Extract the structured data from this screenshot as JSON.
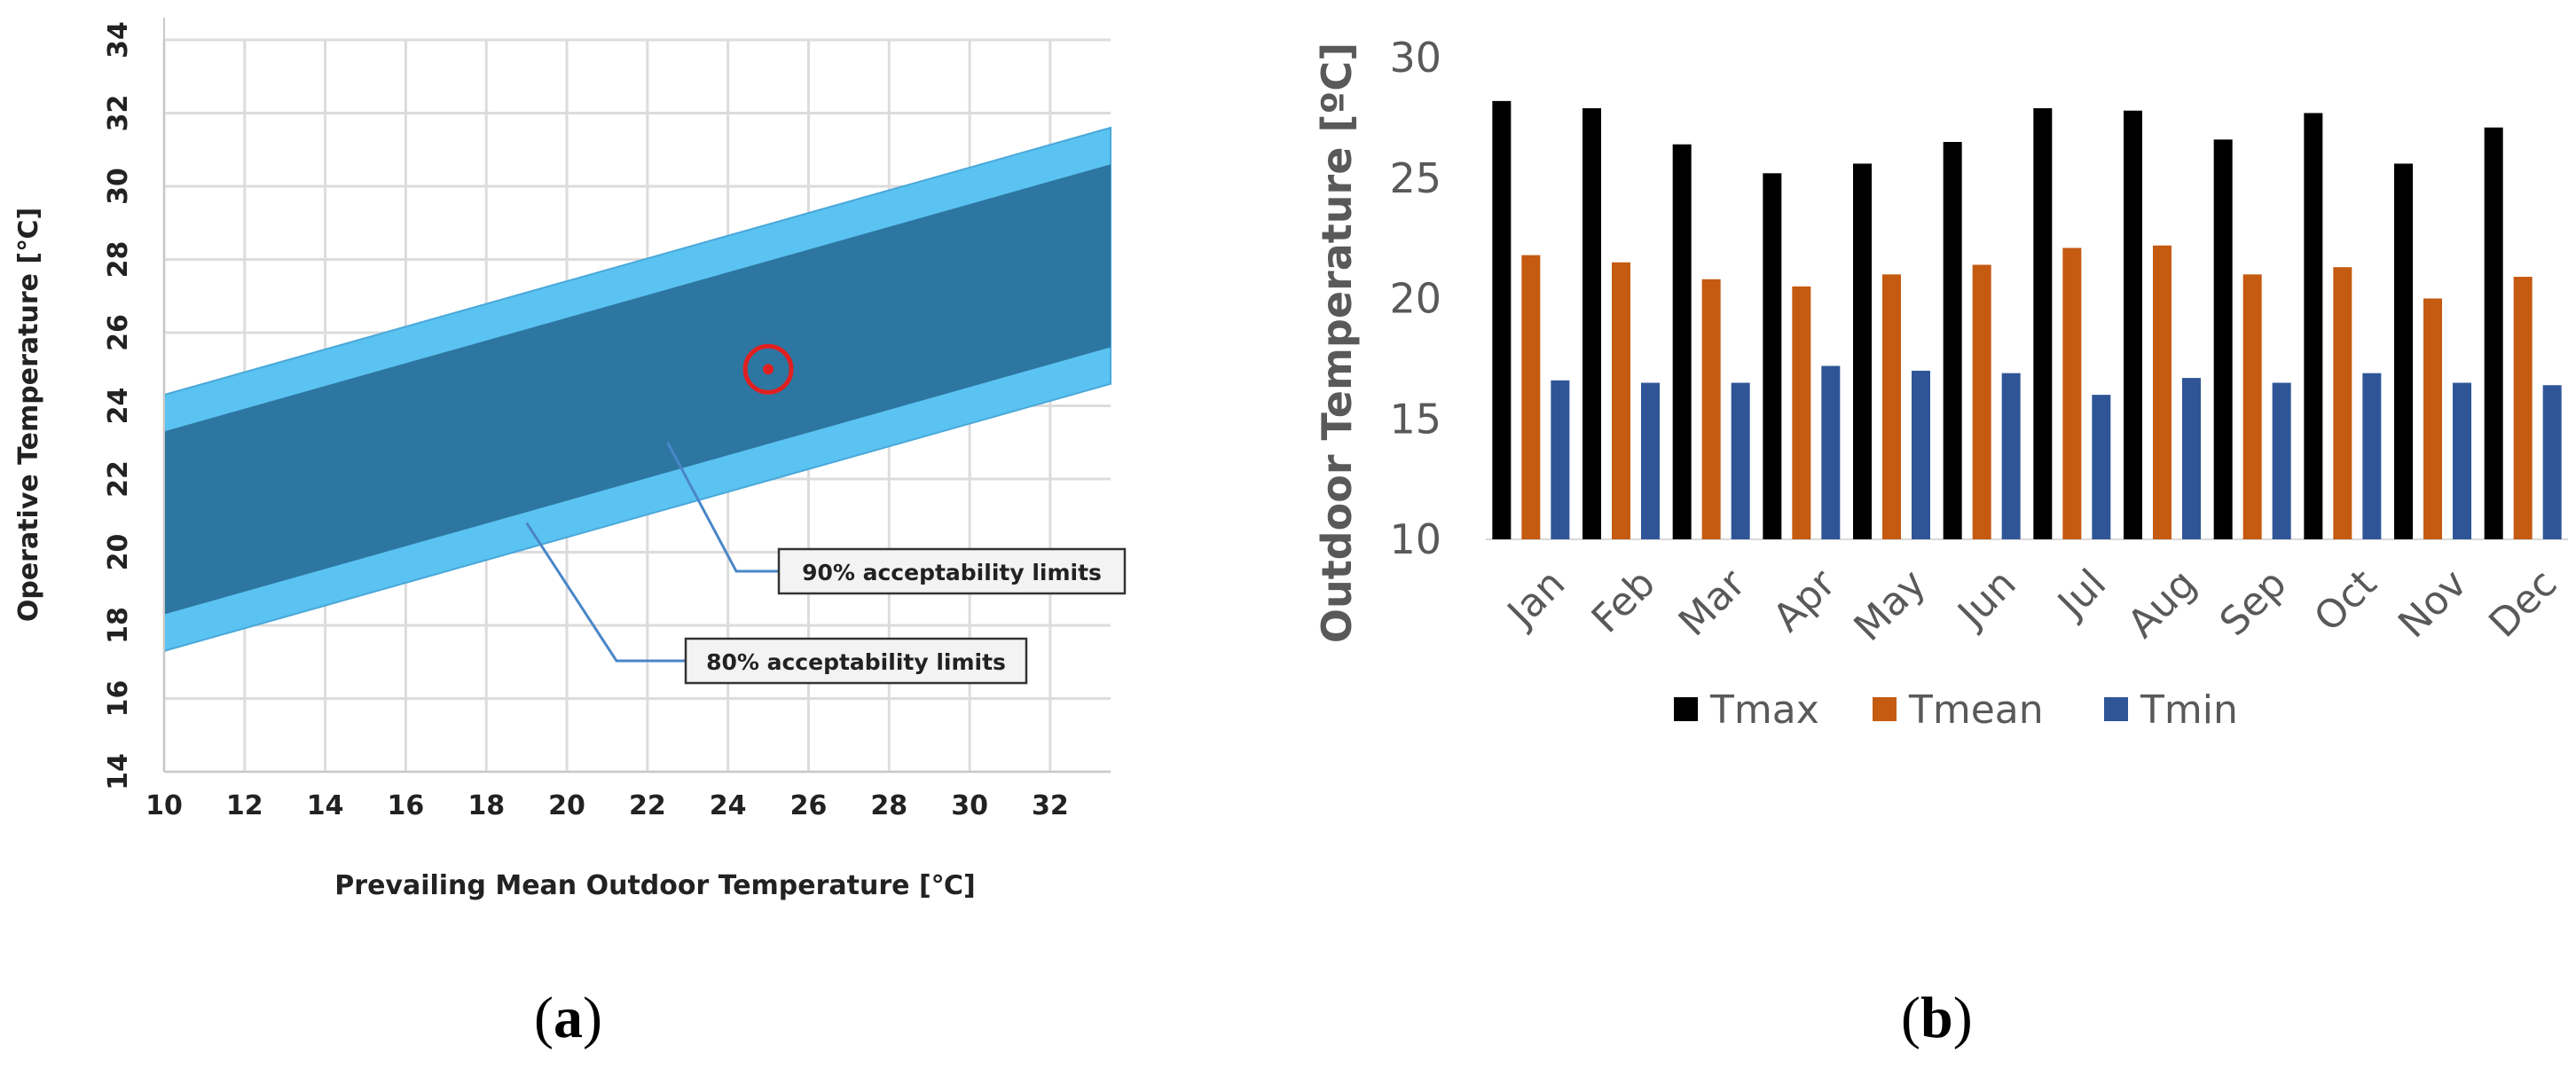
{
  "captions": {
    "a": "a",
    "b": "b"
  },
  "chart_data": [
    {
      "type": "area",
      "title": "",
      "xlabel": "Prevailing Mean Outdoor Temperature [℃]",
      "ylabel": "Operative Temperature [℃]",
      "xlim": [
        10,
        33.5
      ],
      "ylim": [
        14,
        34
      ],
      "x_ticks": [
        "10",
        "12",
        "14",
        "16",
        "18",
        "20",
        "22",
        "24",
        "26",
        "28",
        "30",
        "32"
      ],
      "y_ticks": [
        "14",
        "16",
        "18",
        "20",
        "22",
        "24",
        "26",
        "28",
        "30",
        "32",
        "34"
      ],
      "bands": [
        {
          "name": "80% acceptability limits",
          "x": [
            10,
            33.5
          ],
          "upper": [
            24.3,
            31.6
          ],
          "lower": [
            17.3,
            24.6
          ],
          "color": "#5bc3f1"
        },
        {
          "name": "90% acceptability limits",
          "x": [
            10,
            33.5
          ],
          "upper": [
            23.3,
            30.6
          ],
          "lower": [
            18.3,
            25.6
          ],
          "color": "#2d76a1"
        }
      ],
      "annotations": [
        {
          "text": "90% acceptability limits",
          "points_to": [
            22.5,
            23.0
          ]
        },
        {
          "text": "80% acceptability limits",
          "points_to": [
            19.0,
            20.8
          ]
        }
      ],
      "marker": {
        "x": 25,
        "y": 25,
        "color": "#e02020"
      }
    },
    {
      "type": "bar",
      "title": "",
      "xlabel": "",
      "ylabel": "Outdoor Temperature [ºC]",
      "ylim": [
        10,
        30
      ],
      "y_ticks": [
        "10",
        "15",
        "20",
        "25",
        "30"
      ],
      "categories": [
        "Jan",
        "Feb",
        "Mar",
        "Apr",
        "May",
        "Jun",
        "Jul",
        "Aug",
        "Sep",
        "Oct",
        "Nov",
        "Dec"
      ],
      "series": [
        {
          "name": "Tmax",
          "color": "#000000",
          "values": [
            28.2,
            27.9,
            26.4,
            25.2,
            25.6,
            26.5,
            27.9,
            27.8,
            26.6,
            27.7,
            25.6,
            27.1
          ]
        },
        {
          "name": "Tmean",
          "color": "#c55a11",
          "values": [
            21.8,
            21.5,
            20.8,
            20.5,
            21.0,
            21.4,
            22.1,
            22.2,
            21.0,
            21.3,
            20.0,
            20.9
          ]
        },
        {
          "name": "Tmin",
          "color": "#2f5597",
          "values": [
            16.6,
            16.5,
            16.5,
            17.2,
            17.0,
            16.9,
            16.0,
            16.7,
            16.5,
            16.9,
            16.5,
            16.4
          ]
        }
      ],
      "legend": "bottom"
    }
  ]
}
